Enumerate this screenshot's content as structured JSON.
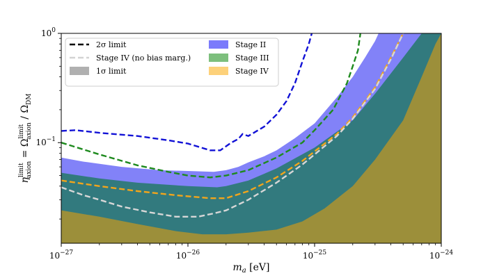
{
  "chart_data": {
    "type": "area",
    "title": "",
    "xlabel": "m_a [eV]",
    "ylabel": "η_axion^limit = Ω_axion^limit / Ω_DM",
    "x_scale": "log",
    "y_scale": "log",
    "xlim": [
      1e-27,
      1e-24
    ],
    "ylim": [
      0.012,
      1.0
    ],
    "grid": false,
    "legend_position": "top-left",
    "x_ticks": [
      {
        "value": 1e-27,
        "label": "10^-27"
      },
      {
        "value": 1e-26,
        "label": "10^-26"
      },
      {
        "value": 1e-25,
        "label": "10^-25"
      },
      {
        "value": 1e-24,
        "label": "10^-24"
      }
    ],
    "y_ticks": [
      {
        "value": 0.1,
        "label": "10^-1"
      },
      {
        "value": 1.0,
        "label": "10^0"
      }
    ],
    "legend": [
      {
        "label": "2σ limit",
        "style": "dashed-line",
        "color": "#000000"
      },
      {
        "label": "Stage IV (no bias marg.)",
        "style": "dashed-line",
        "color": "#d3d3d3"
      },
      {
        "label": "1σ limit",
        "style": "patch",
        "color": "#b0b0b0"
      },
      {
        "label": "Stage II",
        "style": "patch",
        "color": "#7b7bfb"
      },
      {
        "label": "Stage III",
        "style": "patch",
        "color": "#7dbf7d"
      },
      {
        "label": "Stage IV",
        "style": "patch",
        "color": "#fdd17a"
      }
    ],
    "series": [
      {
        "name": "Stage II",
        "kind": "band-1sigma",
        "color": "#7b7bf8",
        "points": [
          [
            1e-27,
            0.073
          ],
          [
            1.5e-27,
            0.067
          ],
          [
            3e-27,
            0.06
          ],
          [
            6e-27,
            0.056
          ],
          [
            1e-26,
            0.055
          ],
          [
            1.6e-26,
            0.054
          ],
          [
            2e-26,
            0.056
          ],
          [
            2.5e-26,
            0.06
          ],
          [
            3e-26,
            0.066
          ],
          [
            4e-26,
            0.075
          ],
          [
            5e-26,
            0.085
          ],
          [
            7e-26,
            0.11
          ],
          [
            1e-25,
            0.15
          ],
          [
            1.5e-25,
            0.26
          ],
          [
            2e-25,
            0.4
          ],
          [
            2.5e-25,
            0.6
          ],
          [
            3e-25,
            0.85
          ],
          [
            3.2e-25,
            1.0
          ]
        ]
      },
      {
        "name": "Stage III",
        "kind": "band-1sigma",
        "color": "#2f7a7a",
        "points": [
          [
            1e-27,
            0.053
          ],
          [
            2e-27,
            0.047
          ],
          [
            4e-27,
            0.043
          ],
          [
            1e-26,
            0.04
          ],
          [
            1.7e-26,
            0.039
          ],
          [
            2e-26,
            0.04
          ],
          [
            3e-26,
            0.045
          ],
          [
            5e-26,
            0.058
          ],
          [
            1e-25,
            0.09
          ],
          [
            2e-25,
            0.16
          ],
          [
            3e-25,
            0.28
          ],
          [
            5e-25,
            0.6
          ],
          [
            7e-25,
            1.0
          ]
        ]
      },
      {
        "name": "Stage IV",
        "kind": "band-1sigma",
        "color": "#9c8f3a",
        "points": [
          [
            1e-27,
            0.024
          ],
          [
            2e-27,
            0.021
          ],
          [
            4e-27,
            0.018
          ],
          [
            8e-27,
            0.0155
          ],
          [
            1.3e-26,
            0.0145
          ],
          [
            2e-26,
            0.0145
          ],
          [
            3e-26,
            0.015
          ],
          [
            5e-26,
            0.016
          ],
          [
            8e-26,
            0.019
          ],
          [
            1.2e-25,
            0.025
          ],
          [
            2e-25,
            0.04
          ],
          [
            3e-25,
            0.07
          ],
          [
            5e-25,
            0.16
          ],
          [
            7e-25,
            0.4
          ],
          [
            9e-25,
            0.8
          ],
          [
            1e-24,
            1.0
          ]
        ]
      },
      {
        "name": "Stage II",
        "kind": "limit-2sigma",
        "color": "#1212d6",
        "points": [
          [
            1e-27,
            0.128
          ],
          [
            1.3e-27,
            0.13
          ],
          [
            2e-27,
            0.123
          ],
          [
            4e-27,
            0.115
          ],
          [
            7e-27,
            0.105
          ],
          [
            1e-26,
            0.098
          ],
          [
            1.5e-26,
            0.085
          ],
          [
            1.8e-26,
            0.085
          ],
          [
            2.2e-26,
            0.1
          ],
          [
            2.5e-26,
            0.108
          ],
          [
            2.7e-26,
            0.12
          ],
          [
            3e-26,
            0.115
          ],
          [
            4e-26,
            0.14
          ],
          [
            5e-26,
            0.18
          ],
          [
            6e-26,
            0.24
          ],
          [
            7e-26,
            0.35
          ],
          [
            8e-26,
            0.55
          ],
          [
            9e-26,
            0.8
          ],
          [
            9.5e-26,
            1.0
          ]
        ]
      },
      {
        "name": "Stage III",
        "kind": "limit-2sigma",
        "color": "#1e8a1e",
        "points": [
          [
            1e-27,
            0.1
          ],
          [
            2e-27,
            0.078
          ],
          [
            4e-27,
            0.062
          ],
          [
            7e-27,
            0.054
          ],
          [
            1e-26,
            0.05
          ],
          [
            1.5e-26,
            0.048
          ],
          [
            2e-26,
            0.05
          ],
          [
            3e-26,
            0.056
          ],
          [
            5e-26,
            0.073
          ],
          [
            8e-26,
            0.1
          ],
          [
            1e-25,
            0.13
          ],
          [
            1.4e-25,
            0.2
          ],
          [
            1.8e-25,
            0.35
          ],
          [
            2e-25,
            0.5
          ],
          [
            2.2e-25,
            0.7
          ],
          [
            2.3e-25,
            1.0
          ]
        ]
      },
      {
        "name": "Stage IV",
        "kind": "limit-2sigma",
        "color": "#f2a51b",
        "points": [
          [
            1e-27,
            0.045
          ],
          [
            2e-27,
            0.04
          ],
          [
            4e-27,
            0.036
          ],
          [
            8e-27,
            0.033
          ],
          [
            1.5e-26,
            0.031
          ],
          [
            2e-26,
            0.031
          ],
          [
            3e-26,
            0.036
          ],
          [
            5e-26,
            0.048
          ],
          [
            8e-26,
            0.068
          ],
          [
            1e-25,
            0.083
          ],
          [
            1.5e-25,
            0.12
          ],
          [
            2e-25,
            0.17
          ],
          [
            3e-25,
            0.32
          ],
          [
            4e-25,
            0.6
          ],
          [
            5e-25,
            1.0
          ]
        ]
      },
      {
        "name": "Stage IV (no bias marg.)",
        "kind": "limit-2sigma",
        "color": "#d7d7d7",
        "points": [
          [
            1e-27,
            0.039
          ],
          [
            1.5e-27,
            0.033
          ],
          [
            2e-27,
            0.03
          ],
          [
            3e-27,
            0.026
          ],
          [
            5e-27,
            0.023
          ],
          [
            8e-27,
            0.021
          ],
          [
            1.2e-26,
            0.021
          ],
          [
            1.6e-26,
            0.0225
          ],
          [
            2e-26,
            0.024
          ],
          [
            3e-26,
            0.03
          ],
          [
            5e-26,
            0.043
          ],
          [
            8e-26,
            0.063
          ],
          [
            1e-25,
            0.078
          ],
          [
            1.5e-25,
            0.115
          ],
          [
            2e-25,
            0.165
          ],
          [
            3e-25,
            0.31
          ],
          [
            4e-25,
            0.58
          ],
          [
            5e-25,
            1.0
          ]
        ]
      }
    ]
  }
}
